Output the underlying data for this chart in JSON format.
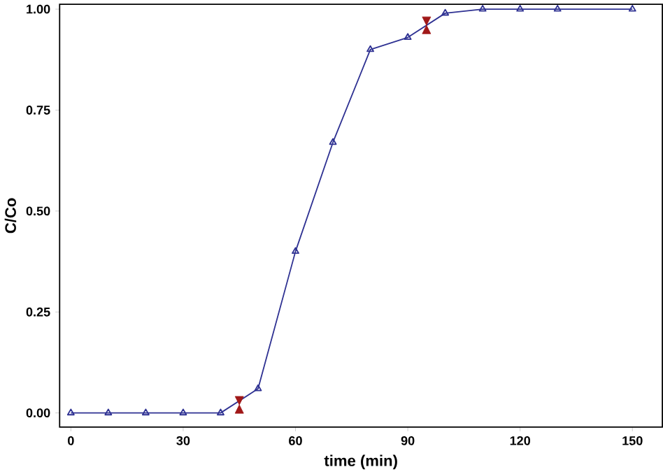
{
  "chart_data": {
    "type": "line",
    "xlabel": "time (min)",
    "ylabel": "C/Co",
    "xlim": [
      -3,
      158
    ],
    "ylim": [
      -0.035,
      1.012
    ],
    "xticks": [
      0,
      30,
      60,
      90,
      120,
      150
    ],
    "yticks": [
      {
        "value": 0,
        "label": "0.00"
      },
      {
        "value": 0.25,
        "label": "0.25"
      },
      {
        "value": 0.5,
        "label": "0.50"
      },
      {
        "value": 0.75,
        "label": "0.75"
      },
      {
        "value": 1,
        "label": "1.00"
      }
    ],
    "grid": false,
    "series": [
      {
        "color": "#2e3192",
        "marker": "triangle",
        "x": [
          0,
          10,
          20,
          30,
          40,
          50,
          60,
          70,
          80,
          90,
          100,
          110,
          120,
          130,
          150
        ],
        "values": [
          0,
          0,
          0,
          0,
          0,
          0.06,
          0.4,
          0.67,
          0.9,
          0.93,
          0.99,
          1.0,
          1.0,
          1.0,
          1.0
        ]
      },
      {
        "type": "scatter",
        "color": "#a01818",
        "x": [
          45,
          95
        ],
        "values": [
          0.02,
          0.96
        ]
      }
    ]
  }
}
